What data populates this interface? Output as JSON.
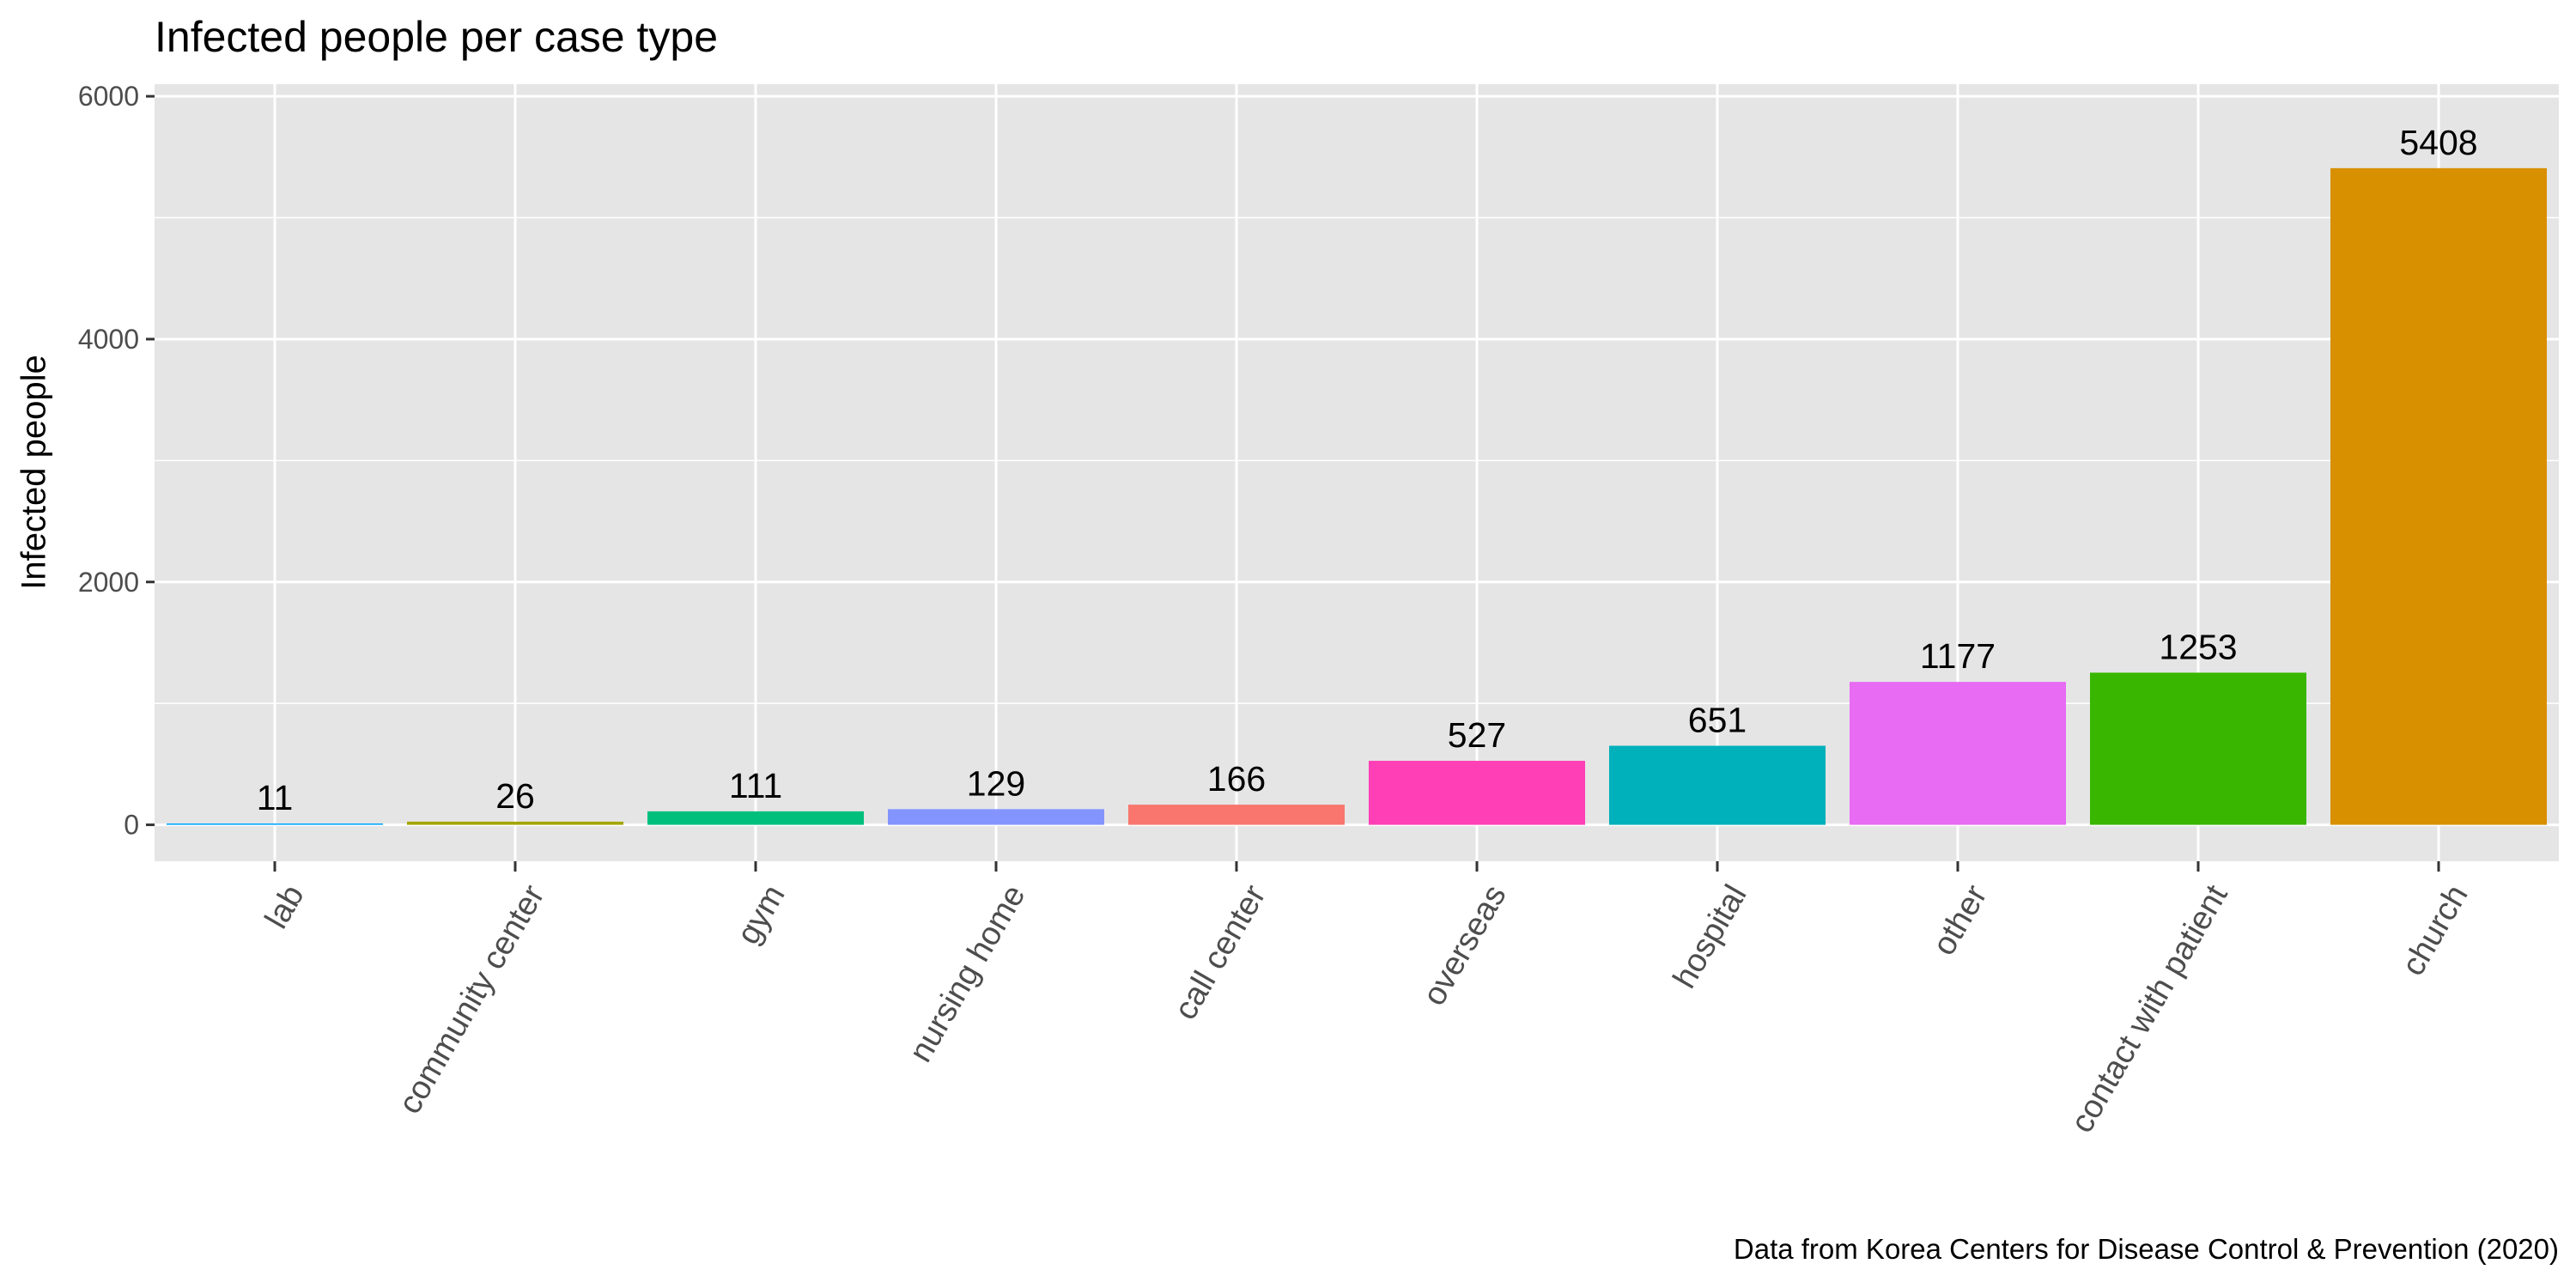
{
  "chart_data": {
    "type": "bar",
    "title": "Infected people per case type",
    "caption": "Data from Korea Centers for Disease Control & Prevention (2020)",
    "xlabel": "",
    "ylabel": "Infected people",
    "ylim": [
      -300,
      6100
    ],
    "yticks": [
      0,
      2000,
      4000,
      6000
    ],
    "ytick_labels": [
      "0",
      "2000",
      "4000",
      "6000"
    ],
    "grid": true,
    "legend": "none",
    "categories": [
      "lab",
      "community center",
      "gym",
      "nursing home",
      "call center",
      "overseas",
      "hospital",
      "other",
      "contact with patient",
      "church"
    ],
    "values": [
      11,
      26,
      111,
      129,
      166,
      527,
      651,
      1177,
      1253,
      5408
    ],
    "data_labels": [
      "11",
      "26",
      "111",
      "129",
      "166",
      "527",
      "651",
      "1177",
      "1253",
      "5408"
    ],
    "colors": [
      "#00A5FF",
      "#A3A500",
      "#00BF7D",
      "#8494FF",
      "#F8766D",
      "#FF3FB6",
      "#00B0BA",
      "#E76BF3",
      "#39B600",
      "#D89000"
    ],
    "panel_background": "#E5E5E5",
    "gridline_color": "#FFFFFF"
  }
}
